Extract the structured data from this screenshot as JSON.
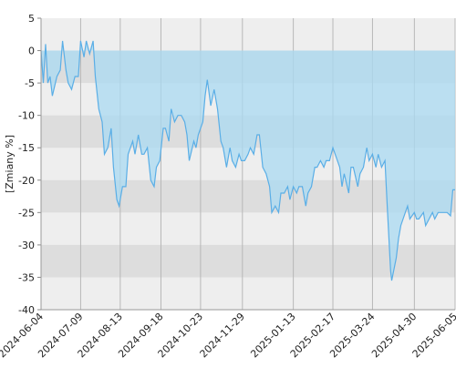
{
  "chart_data": {
    "type": "area",
    "y_label": "[Zmiany %]",
    "color": "#5aaee6",
    "fill": "#a9d9f1",
    "grid": true,
    "ylim": [
      -40,
      5
    ],
    "yticks": [
      5,
      0,
      -5,
      -10,
      -15,
      -20,
      -25,
      -30,
      -35,
      -40
    ],
    "xlim": [
      "2024-06-04",
      "2025-06-05"
    ],
    "xticks": [
      "2024-06-04",
      "2024-07-09",
      "2024-08-13",
      "2024-09-18",
      "2024-10-23",
      "2024-11-29",
      "2025-01-13",
      "2025-02-17",
      "2025-03-24",
      "2025-04-30",
      "2025-06-05"
    ],
    "x": [
      "2024-06-04",
      "2024-06-06",
      "2024-06-08",
      "2024-06-10",
      "2024-06-12",
      "2024-06-14",
      "2024-06-18",
      "2024-06-21",
      "2024-06-23",
      "2024-06-26",
      "2024-06-28",
      "2024-07-01",
      "2024-07-04",
      "2024-07-07",
      "2024-07-09",
      "2024-07-12",
      "2024-07-14",
      "2024-07-17",
      "2024-07-20",
      "2024-07-22",
      "2024-07-25",
      "2024-07-28",
      "2024-07-30",
      "2024-08-02",
      "2024-08-05",
      "2024-08-07",
      "2024-08-10",
      "2024-08-12",
      "2024-08-15",
      "2024-08-18",
      "2024-08-20",
      "2024-08-24",
      "2024-08-26",
      "2024-08-29",
      "2024-09-01",
      "2024-09-03",
      "2024-09-06",
      "2024-09-09",
      "2024-09-12",
      "2024-09-14",
      "2024-09-17",
      "2024-09-20",
      "2024-09-22",
      "2024-09-25",
      "2024-09-27",
      "2024-09-30",
      "2024-10-03",
      "2024-10-06",
      "2024-10-09",
      "2024-10-11",
      "2024-10-13",
      "2024-10-17",
      "2024-10-19",
      "2024-10-21",
      "2024-10-25",
      "2024-10-27",
      "2024-10-29",
      "2024-11-01",
      "2024-11-04",
      "2024-11-07",
      "2024-11-10",
      "2024-11-12",
      "2024-11-15",
      "2024-11-18",
      "2024-11-20",
      "2024-11-23",
      "2024-11-26",
      "2024-11-28",
      "2024-12-01",
      "2024-12-04",
      "2024-12-06",
      "2024-12-09",
      "2024-12-12",
      "2024-12-14",
      "2024-12-17",
      "2024-12-20",
      "2024-12-23",
      "2024-12-25",
      "2024-12-28",
      "2024-12-31",
      "2025-01-02",
      "2025-01-05",
      "2025-01-08",
      "2025-01-10",
      "2025-01-13",
      "2025-01-16",
      "2025-01-18",
      "2025-01-21",
      "2025-01-24",
      "2025-01-26",
      "2025-01-29",
      "2025-02-01",
      "2025-02-03",
      "2025-02-06",
      "2025-02-09",
      "2025-02-11",
      "2025-02-14",
      "2025-02-17",
      "2025-02-19",
      "2025-02-23",
      "2025-02-25",
      "2025-02-27",
      "2025-03-03",
      "2025-03-05",
      "2025-03-07",
      "2025-03-11",
      "2025-03-13",
      "2025-03-16",
      "2025-03-19",
      "2025-03-21",
      "2025-03-24",
      "2025-03-27",
      "2025-03-29",
      "2025-04-01",
      "2025-04-04",
      "2025-04-06",
      "2025-04-09",
      "2025-04-10",
      "2025-04-14",
      "2025-04-16",
      "2025-04-18",
      "2025-04-22",
      "2025-04-24",
      "2025-04-26",
      "2025-04-30",
      "2025-05-02",
      "2025-05-04",
      "2025-05-08",
      "2025-05-10",
      "2025-05-13",
      "2025-05-16",
      "2025-05-18",
      "2025-05-21",
      "2025-05-24",
      "2025-05-26",
      "2025-05-29",
      "2025-06-01",
      "2025-06-03",
      "2025-06-05"
    ],
    "values": [
      0,
      -5,
      1,
      -5,
      -4,
      -7,
      -4,
      -3,
      1.5,
      -3,
      -5,
      -6,
      -4,
      -4,
      1.5,
      -1,
      1.5,
      -0.5,
      1.5,
      -4,
      -9,
      -11,
      -16,
      -15,
      -12,
      -18,
      -23,
      -24,
      -21,
      -21,
      -16,
      -14,
      -16,
      -13,
      -16,
      -16,
      -15,
      -20,
      -21,
      -18,
      -17,
      -12,
      -12,
      -14,
      -9,
      -11,
      -10,
      -10,
      -11,
      -13,
      -17,
      -14,
      -15,
      -13,
      -11,
      -7,
      -4.5,
      -8.5,
      -6,
      -9,
      -14,
      -15,
      -18,
      -15,
      -17,
      -18,
      -16,
      -17,
      -17,
      -16,
      -15,
      -16,
      -13,
      -13,
      -18,
      -19,
      -21,
      -25,
      -24,
      -25,
      -22,
      -22,
      -21,
      -23,
      -21,
      -22,
      -21,
      -21,
      -24,
      -22,
      -21,
      -18,
      -18,
      -17,
      -18,
      -17,
      -17,
      -15,
      -16,
      -18,
      -21,
      -19,
      -22,
      -18,
      -18,
      -21,
      -19,
      -18,
      -15,
      -17,
      -16,
      -18,
      -16,
      -18,
      -17,
      -24,
      -34,
      -35.5,
      -32,
      -29,
      -27,
      -25,
      -24,
      -26,
      -25,
      -26,
      -26,
      -25,
      -27,
      -26,
      -25,
      -26,
      -25,
      -25,
      -25,
      -25,
      -25.5,
      -21.5,
      -21.5
    ]
  }
}
